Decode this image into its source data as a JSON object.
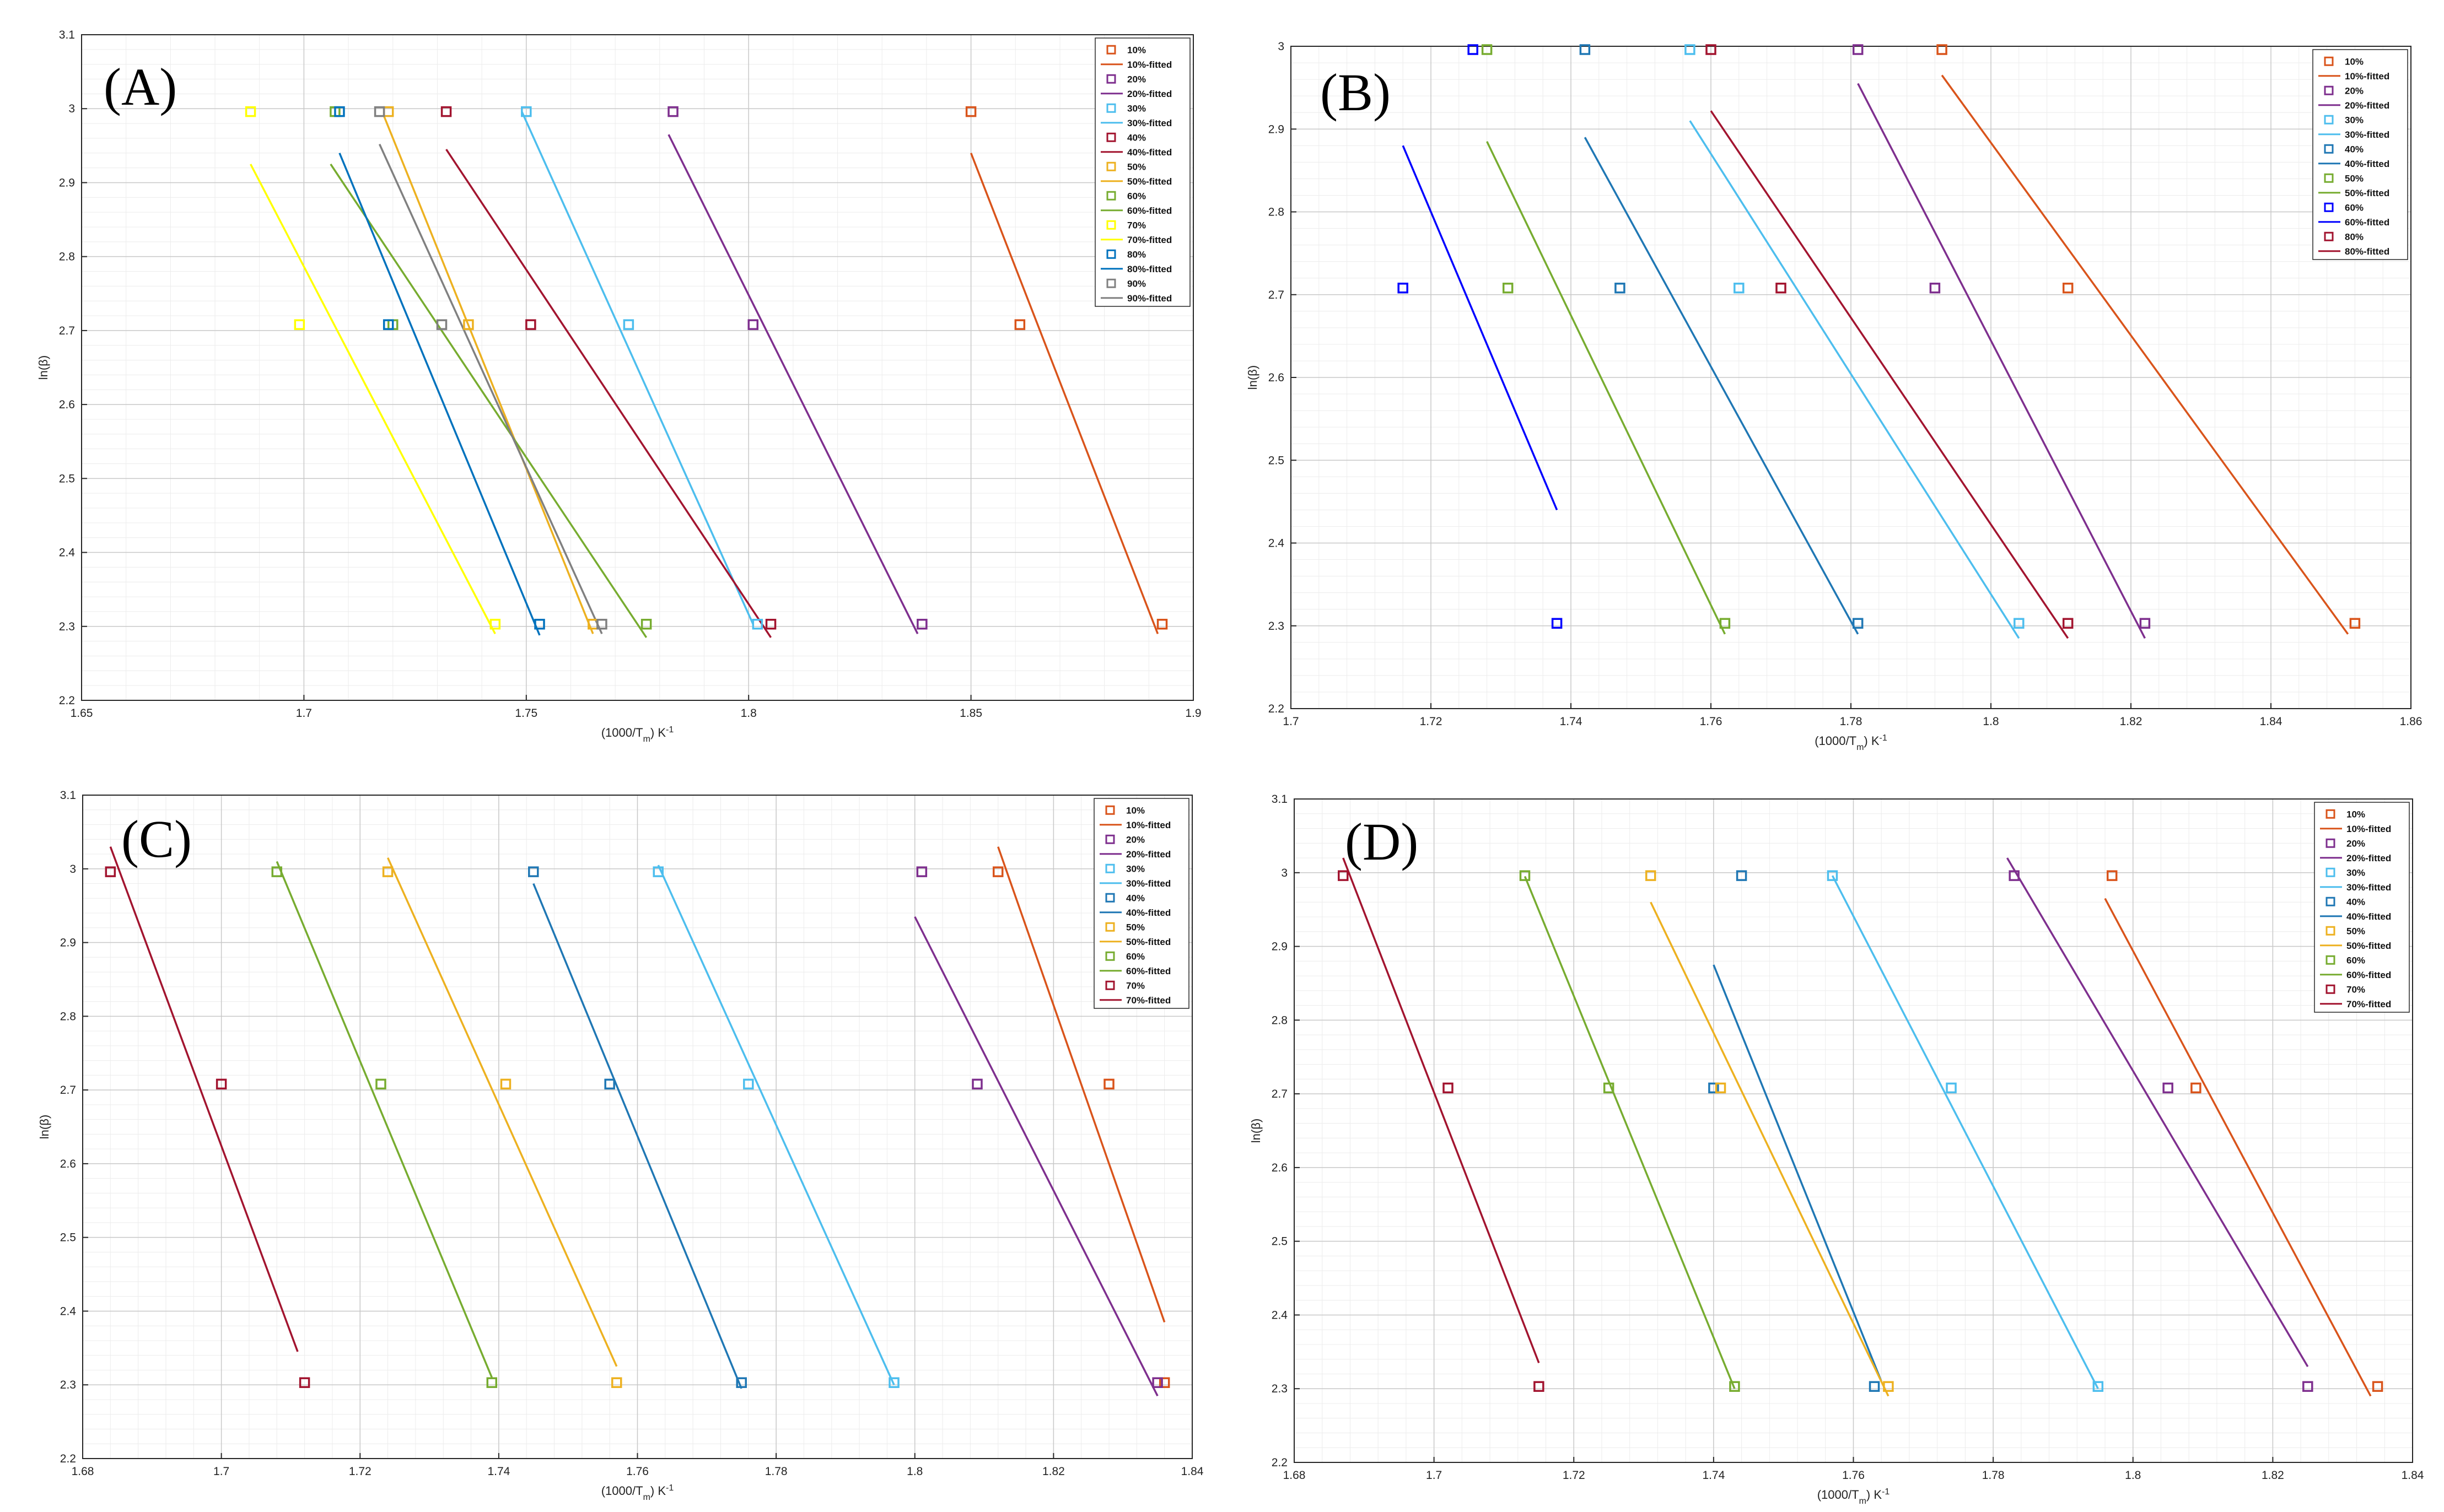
{
  "figure": {
    "colors": {
      "10%": "#D9541B",
      "20%": "#7E2F8E",
      "30%": "#4DBEEE",
      "40%": "#1F77B4",
      "50%": "#EDB120",
      "60%": "#77AC30",
      "70%": "#A2142F",
      "80%": "#0072BD",
      "90%": "#808080"
    }
  },
  "chart_data": [
    {
      "type": "scatter",
      "panel_label": "(A)",
      "xlabel": "(1000/T",
      "xlabel_sub": "m",
      "xlabel_tail": ") K",
      "xlabel_sup": "-1",
      "ylabel": "ln(β)",
      "xlim": [
        1.65,
        1.9
      ],
      "ylim": [
        2.2,
        3.1
      ],
      "xticks": [
        "1.65",
        "1.7",
        "1.75",
        "1.8",
        "1.85",
        "1.9"
      ],
      "yticks": [
        "2.2",
        "2.3",
        "2.4",
        "2.5",
        "2.6",
        "2.7",
        "2.8",
        "2.9",
        "3",
        "3.1"
      ],
      "legend_position": "top-right",
      "series": [
        {
          "name": "10%",
          "fitted_name": "10%-fitted",
          "color": "#D9541B",
          "points": [
            [
              1.85,
              2.996
            ],
            [
              1.861,
              2.708
            ],
            [
              1.893,
              2.303
            ]
          ],
          "fit": [
            [
              1.85,
              2.94
            ],
            [
              1.892,
              2.29
            ]
          ]
        },
        {
          "name": "20%",
          "fitted_name": "20%-fitted",
          "color": "#7E2F8E",
          "points": [
            [
              1.783,
              2.996
            ],
            [
              1.801,
              2.708
            ],
            [
              1.839,
              2.303
            ]
          ],
          "fit": [
            [
              1.782,
              2.965
            ],
            [
              1.838,
              2.29
            ]
          ]
        },
        {
          "name": "30%",
          "fitted_name": "30%-fitted",
          "color": "#4DBEEE",
          "points": [
            [
              1.75,
              2.996
            ],
            [
              1.773,
              2.708
            ],
            [
              1.802,
              2.303
            ]
          ],
          "fit": [
            [
              1.749,
              2.996
            ],
            [
              1.801,
              2.303
            ]
          ]
        },
        {
          "name": "40%",
          "fitted_name": "40%-fitted",
          "color": "#A2142F",
          "points": [
            [
              1.732,
              2.996
            ],
            [
              1.751,
              2.708
            ],
            [
              1.805,
              2.303
            ]
          ],
          "fit": [
            [
              1.732,
              2.945
            ],
            [
              1.805,
              2.285
            ]
          ]
        },
        {
          "name": "50%",
          "fitted_name": "50%-fitted",
          "color": "#EDB120",
          "points": [
            [
              1.719,
              2.996
            ],
            [
              1.737,
              2.708
            ],
            [
              1.765,
              2.303
            ]
          ],
          "fit": [
            [
              1.718,
              2.99
            ],
            [
              1.765,
              2.29
            ]
          ]
        },
        {
          "name": "60%",
          "fitted_name": "60%-fitted",
          "color": "#77AC30",
          "points": [
            [
              1.707,
              2.996
            ],
            [
              1.72,
              2.708
            ],
            [
              1.777,
              2.303
            ]
          ],
          "fit": [
            [
              1.706,
              2.925
            ],
            [
              1.777,
              2.285
            ]
          ]
        },
        {
          "name": "70%",
          "fitted_name": "70%-fitted",
          "color": "#FFFF00",
          "points": [
            [
              1.688,
              2.996
            ],
            [
              1.699,
              2.708
            ],
            [
              1.743,
              2.303
            ]
          ],
          "fit": [
            [
              1.688,
              2.925
            ],
            [
              1.743,
              2.29
            ]
          ]
        },
        {
          "name": "80%",
          "fitted_name": "80%-fitted",
          "color": "#0072BD",
          "points": [
            [
              1.708,
              2.996
            ],
            [
              1.719,
              2.708
            ],
            [
              1.753,
              2.303
            ]
          ],
          "fit": [
            [
              1.708,
              2.94
            ],
            [
              1.753,
              2.288
            ]
          ]
        },
        {
          "name": "90%",
          "fitted_name": "90%-fitted",
          "color": "#808080",
          "points": [
            [
              1.717,
              2.996
            ],
            [
              1.731,
              2.708
            ],
            [
              1.767,
              2.303
            ]
          ],
          "fit": [
            [
              1.717,
              2.952
            ],
            [
              1.767,
              2.29
            ]
          ]
        }
      ]
    },
    {
      "type": "scatter",
      "panel_label": "(B)",
      "xlabel": "(1000/T",
      "xlabel_sub": "m",
      "xlabel_tail": ") K",
      "xlabel_sup": "-1",
      "ylabel": "ln(β)",
      "xlim": [
        1.7,
        1.86
      ],
      "ylim": [
        2.2,
        3.0
      ],
      "xticks": [
        "1.7",
        "1.72",
        "1.74",
        "1.76",
        "1.78",
        "1.8",
        "1.82",
        "1.84",
        "1.86"
      ],
      "yticks": [
        "2.2",
        "2.3",
        "2.4",
        "2.5",
        "2.6",
        "2.7",
        "2.8",
        "2.9",
        "3"
      ],
      "legend_position": "top-right",
      "series": [
        {
          "name": "10%",
          "fitted_name": "10%-fitted",
          "color": "#D9541B",
          "points": [
            [
              1.793,
              2.996
            ],
            [
              1.811,
              2.708
            ],
            [
              1.852,
              2.303
            ]
          ],
          "fit": [
            [
              1.793,
              2.965
            ],
            [
              1.851,
              2.29
            ]
          ]
        },
        {
          "name": "20%",
          "fitted_name": "20%-fitted",
          "color": "#7E2F8E",
          "points": [
            [
              1.781,
              2.996
            ],
            [
              1.792,
              2.708
            ],
            [
              1.822,
              2.303
            ]
          ],
          "fit": [
            [
              1.781,
              2.955
            ],
            [
              1.822,
              2.285
            ]
          ]
        },
        {
          "name": "30%",
          "fitted_name": "30%-fitted",
          "color": "#4DBEEE",
          "points": [
            [
              1.757,
              2.996
            ],
            [
              1.764,
              2.708
            ],
            [
              1.804,
              2.303
            ]
          ],
          "fit": [
            [
              1.757,
              2.91
            ],
            [
              1.804,
              2.285
            ]
          ]
        },
        {
          "name": "40%",
          "fitted_name": "40%-fitted",
          "color": "#1F77B4",
          "points": [
            [
              1.742,
              2.996
            ],
            [
              1.747,
              2.708
            ],
            [
              1.781,
              2.303
            ]
          ],
          "fit": [
            [
              1.742,
              2.89
            ],
            [
              1.781,
              2.29
            ]
          ]
        },
        {
          "name": "50%",
          "fitted_name": "50%-fitted",
          "color": "#77AC30",
          "points": [
            [
              1.728,
              2.996
            ],
            [
              1.731,
              2.708
            ],
            [
              1.762,
              2.303
            ]
          ],
          "fit": [
            [
              1.728,
              2.885
            ],
            [
              1.762,
              2.29
            ]
          ]
        },
        {
          "name": "60%",
          "fitted_name": "60%-fitted",
          "color": "#0000FF",
          "points": [
            [
              1.726,
              2.996
            ],
            [
              1.716,
              2.708
            ],
            [
              1.738,
              2.303
            ]
          ],
          "fit": [
            [
              1.716,
              2.88
            ],
            [
              1.738,
              2.44
            ]
          ]
        },
        {
          "name": "80%",
          "fitted_name": "80%-fitted",
          "color": "#A2142F",
          "points": [
            [
              1.76,
              2.996
            ],
            [
              1.77,
              2.708
            ],
            [
              1.811,
              2.303
            ]
          ],
          "fit": [
            [
              1.76,
              2.922
            ],
            [
              1.811,
              2.285
            ]
          ]
        }
      ]
    },
    {
      "type": "scatter",
      "panel_label": "(C)",
      "xlabel": "(1000/T",
      "xlabel_sub": "m",
      "xlabel_tail": ") K",
      "xlabel_sup": "-1",
      "ylabel": "ln(β)",
      "xlim": [
        1.68,
        1.84
      ],
      "ylim": [
        2.2,
        3.1
      ],
      "xticks": [
        "1.68",
        "1.7",
        "1.72",
        "1.74",
        "1.76",
        "1.78",
        "1.8",
        "1.82",
        "1.84"
      ],
      "yticks": [
        "2.2",
        "2.3",
        "2.4",
        "2.5",
        "2.6",
        "2.7",
        "2.8",
        "2.9",
        "3",
        "3.1"
      ],
      "legend_position": "top-right",
      "series": [
        {
          "name": "10%",
          "fitted_name": "10%-fitted",
          "color": "#D9541B",
          "points": [
            [
              1.812,
              2.996
            ],
            [
              1.828,
              2.708
            ],
            [
              1.836,
              2.303
            ]
          ],
          "fit": [
            [
              1.812,
              3.03
            ],
            [
              1.836,
              2.385
            ]
          ]
        },
        {
          "name": "20%",
          "fitted_name": "20%-fitted",
          "color": "#7E2F8E",
          "points": [
            [
              1.801,
              2.996
            ],
            [
              1.809,
              2.708
            ],
            [
              1.835,
              2.303
            ]
          ],
          "fit": [
            [
              1.8,
              2.935
            ],
            [
              1.835,
              2.285
            ]
          ]
        },
        {
          "name": "30%",
          "fitted_name": "30%-fitted",
          "color": "#4DBEEE",
          "points": [
            [
              1.763,
              2.996
            ],
            [
              1.776,
              2.708
            ],
            [
              1.797,
              2.303
            ]
          ],
          "fit": [
            [
              1.763,
              3.005
            ],
            [
              1.797,
              2.3
            ]
          ]
        },
        {
          "name": "40%",
          "fitted_name": "40%-fitted",
          "color": "#1F77B4",
          "points": [
            [
              1.745,
              2.996
            ],
            [
              1.756,
              2.708
            ],
            [
              1.775,
              2.303
            ]
          ],
          "fit": [
            [
              1.745,
              2.98
            ],
            [
              1.775,
              2.295
            ]
          ]
        },
        {
          "name": "50%",
          "fitted_name": "50%-fitted",
          "color": "#EDB120",
          "points": [
            [
              1.724,
              2.996
            ],
            [
              1.741,
              2.708
            ],
            [
              1.757,
              2.303
            ]
          ],
          "fit": [
            [
              1.724,
              3.015
            ],
            [
              1.757,
              2.325
            ]
          ]
        },
        {
          "name": "60%",
          "fitted_name": "60%-fitted",
          "color": "#77AC30",
          "points": [
            [
              1.708,
              2.996
            ],
            [
              1.723,
              2.708
            ],
            [
              1.739,
              2.303
            ]
          ],
          "fit": [
            [
              1.708,
              3.01
            ],
            [
              1.739,
              2.31
            ]
          ]
        },
        {
          "name": "70%",
          "fitted_name": "70%-fitted",
          "color": "#A2142F",
          "points": [
            [
              1.684,
              2.996
            ],
            [
              1.7,
              2.708
            ],
            [
              1.712,
              2.303
            ]
          ],
          "fit": [
            [
              1.684,
              3.03
            ],
            [
              1.711,
              2.345
            ]
          ]
        }
      ]
    },
    {
      "type": "scatter",
      "panel_label": "(D)",
      "xlabel": "(1000/T",
      "xlabel_sub": "m",
      "xlabel_tail": ") K",
      "xlabel_sup": "-1",
      "ylabel": "ln(β)",
      "xlim": [
        1.68,
        1.84
      ],
      "ylim": [
        2.2,
        3.1
      ],
      "xticks": [
        "1.68",
        "1.7",
        "1.72",
        "1.74",
        "1.76",
        "1.78",
        "1.8",
        "1.82",
        "1.84"
      ],
      "yticks": [
        "2.2",
        "2.3",
        "2.4",
        "2.5",
        "2.6",
        "2.7",
        "2.8",
        "2.9",
        "3",
        "3.1"
      ],
      "legend_position": "top-right",
      "series": [
        {
          "name": "10%",
          "fitted_name": "10%-fitted",
          "color": "#D9541B",
          "points": [
            [
              1.797,
              2.996
            ],
            [
              1.809,
              2.708
            ],
            [
              1.835,
              2.303
            ]
          ],
          "fit": [
            [
              1.796,
              2.965
            ],
            [
              1.834,
              2.29
            ]
          ]
        },
        {
          "name": "20%",
          "fitted_name": "20%-fitted",
          "color": "#7E2F8E",
          "points": [
            [
              1.783,
              2.996
            ],
            [
              1.805,
              2.708
            ],
            [
              1.825,
              2.303
            ]
          ],
          "fit": [
            [
              1.782,
              3.02
            ],
            [
              1.825,
              2.33
            ]
          ]
        },
        {
          "name": "30%",
          "fitted_name": "30%-fitted",
          "color": "#4DBEEE",
          "points": [
            [
              1.757,
              2.996
            ],
            [
              1.774,
              2.708
            ],
            [
              1.795,
              2.303
            ]
          ],
          "fit": [
            [
              1.757,
              2.996
            ],
            [
              1.795,
              2.3
            ]
          ]
        },
        {
          "name": "40%",
          "fitted_name": "40%-fitted",
          "color": "#1F77B4",
          "points": [
            [
              1.744,
              2.996
            ],
            [
              1.74,
              2.708
            ],
            [
              1.763,
              2.303
            ]
          ],
          "fit": [
            [
              1.74,
              2.875
            ],
            [
              1.764,
              2.31
            ]
          ]
        },
        {
          "name": "50%",
          "fitted_name": "50%-fitted",
          "color": "#EDB120",
          "points": [
            [
              1.731,
              2.996
            ],
            [
              1.741,
              2.708
            ],
            [
              1.765,
              2.303
            ]
          ],
          "fit": [
            [
              1.731,
              2.96
            ],
            [
              1.765,
              2.29
            ]
          ]
        },
        {
          "name": "60%",
          "fitted_name": "60%-fitted",
          "color": "#77AC30",
          "points": [
            [
              1.713,
              2.996
            ],
            [
              1.725,
              2.708
            ],
            [
              1.743,
              2.303
            ]
          ],
          "fit": [
            [
              1.713,
              2.995
            ],
            [
              1.743,
              2.3
            ]
          ]
        },
        {
          "name": "70%",
          "fitted_name": "70%-fitted",
          "color": "#A2142F",
          "points": [
            [
              1.687,
              2.996
            ],
            [
              1.702,
              2.708
            ],
            [
              1.715,
              2.303
            ]
          ],
          "fit": [
            [
              1.687,
              3.02
            ],
            [
              1.715,
              2.335
            ]
          ]
        }
      ]
    }
  ]
}
